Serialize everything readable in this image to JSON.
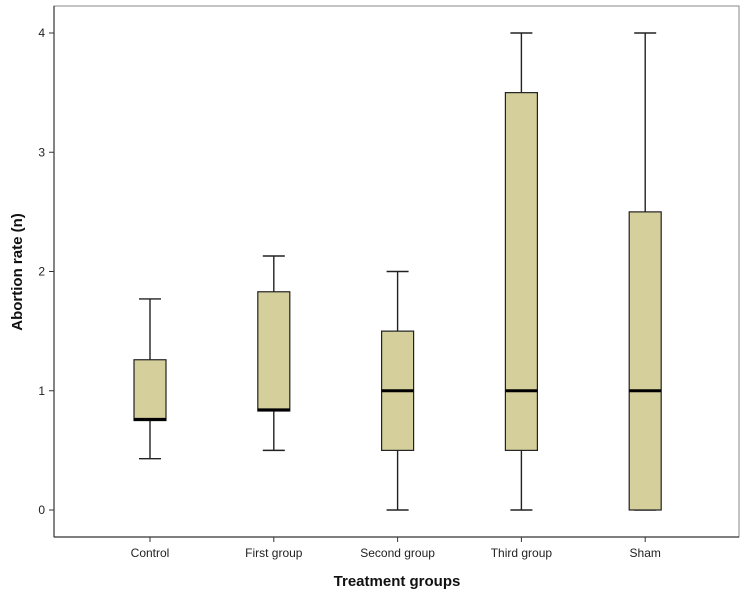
{
  "chart_data": {
    "type": "boxplot",
    "title": "",
    "xlabel": "Treatment groups",
    "ylabel": "Abortion rate (n)",
    "ylim": [
      0,
      4
    ],
    "yticks": [
      "0",
      "1",
      "2",
      "3",
      "4"
    ],
    "grid": false,
    "box_color": "#d4cf9b",
    "categories": [
      "Control",
      "First group",
      "Second group",
      "Third group",
      "Sham"
    ],
    "boxes": [
      {
        "min": 0.43,
        "q1": 0.75,
        "median": 0.76,
        "q3": 1.26,
        "max": 1.77
      },
      {
        "min": 0.5,
        "q1": 0.83,
        "median": 0.84,
        "q3": 1.83,
        "max": 2.13
      },
      {
        "min": 0.0,
        "q1": 0.5,
        "median": 1.0,
        "q3": 1.5,
        "max": 2.0
      },
      {
        "min": 0.0,
        "q1": 0.5,
        "median": 1.0,
        "q3": 3.5,
        "max": 4.0
      },
      {
        "min": 0.0,
        "q1": 0.0,
        "median": 1.0,
        "q3": 2.5,
        "max": 4.0
      }
    ]
  }
}
